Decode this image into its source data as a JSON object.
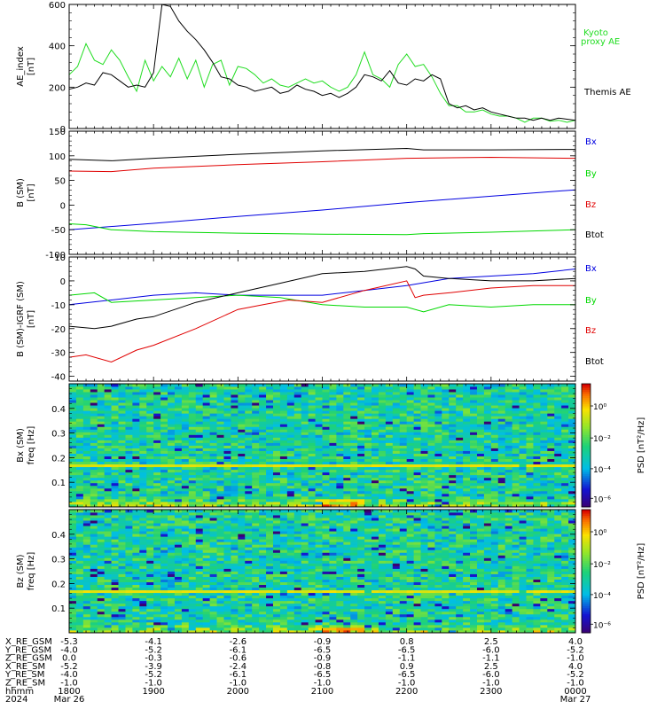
{
  "colors": {
    "axes": "#000000",
    "black": "#000000",
    "red": "#e00000",
    "green": "#00d800",
    "blue": "#0000e0",
    "kyoto": "#22dd22"
  },
  "chart_data": [
    {
      "id": "ae",
      "type": "line",
      "ylabel": "AE_index",
      "yunit": "[nT]",
      "ylim": [
        0,
        600
      ],
      "yticks": [
        0,
        200,
        400,
        600
      ],
      "xlim": [
        1800,
        2400
      ],
      "series": [
        {
          "name": "Kyoto proxy AE",
          "color": "#22dd22",
          "x": [
            1800,
            1810,
            1820,
            1830,
            1840,
            1850,
            1860,
            1870,
            1880,
            1890,
            1900,
            1910,
            1920,
            1930,
            1940,
            1950,
            1960,
            1970,
            1980,
            1990,
            2000,
            2010,
            2020,
            2030,
            2040,
            2050,
            2060,
            2070,
            2080,
            2090,
            2100,
            2110,
            2120,
            2130,
            2140,
            2150,
            2160,
            2170,
            2180,
            2190,
            2200,
            2210,
            2220,
            2230,
            2240,
            2250,
            2260,
            2270,
            2280,
            2290,
            2300,
            2310,
            2320,
            2330,
            2340,
            2350,
            2360,
            2370,
            2380,
            2390,
            2400
          ],
          "y": [
            260,
            300,
            410,
            330,
            310,
            380,
            330,
            250,
            180,
            330,
            230,
            300,
            250,
            340,
            240,
            330,
            200,
            310,
            330,
            210,
            300,
            290,
            260,
            220,
            240,
            210,
            200,
            220,
            240,
            220,
            230,
            200,
            180,
            200,
            260,
            370,
            260,
            240,
            200,
            310,
            360,
            300,
            310,
            250,
            170,
            110,
            110,
            80,
            80,
            90,
            70,
            60,
            60,
            50,
            30,
            50,
            50,
            35,
            40,
            30,
            40
          ]
        },
        {
          "name": "Themis AE",
          "color": "#000000",
          "x": [
            1800,
            1810,
            1820,
            1830,
            1840,
            1850,
            1860,
            1870,
            1880,
            1890,
            1900,
            1910,
            1920,
            1930,
            1940,
            1950,
            1960,
            1970,
            1980,
            1990,
            2000,
            2010,
            2020,
            2030,
            2040,
            2050,
            2060,
            2070,
            2080,
            2090,
            2100,
            2110,
            2120,
            2130,
            2140,
            2150,
            2160,
            2170,
            2180,
            2190,
            2200,
            2210,
            2220,
            2230,
            2240,
            2250,
            2260,
            2270,
            2280,
            2290,
            2300,
            2310,
            2320,
            2330,
            2340,
            2350,
            2360,
            2370,
            2380,
            2390,
            2400
          ],
          "y": [
            190,
            200,
            220,
            210,
            270,
            260,
            230,
            200,
            210,
            200,
            270,
            600,
            590,
            520,
            470,
            430,
            380,
            320,
            250,
            240,
            210,
            200,
            180,
            190,
            200,
            170,
            180,
            210,
            190,
            180,
            160,
            170,
            150,
            170,
            200,
            260,
            250,
            230,
            280,
            220,
            210,
            240,
            230,
            260,
            240,
            120,
            100,
            110,
            90,
            100,
            80,
            70,
            60,
            50,
            50,
            40,
            50,
            40,
            50,
            45,
            40
          ]
        }
      ]
    },
    {
      "id": "b-sm",
      "type": "line",
      "ylabel": "B (SM)",
      "yunit": "[nT]",
      "ylim": [
        -100,
        150
      ],
      "yticks": [
        -100,
        -50,
        0,
        50,
        100,
        150
      ],
      "xlim": [
        1800,
        2400
      ],
      "series": [
        {
          "name": "Bx",
          "color": "#0000e0",
          "x": [
            1800,
            1900,
            2000,
            2100,
            2200,
            2300,
            2400
          ],
          "y": [
            -50,
            -37,
            -23,
            -10,
            5,
            18,
            31
          ]
        },
        {
          "name": "By",
          "color": "#00d800",
          "x": [
            1800,
            1820,
            1850,
            1900,
            2000,
            2100,
            2200,
            2220,
            2300,
            2400
          ],
          "y": [
            -38,
            -40,
            -50,
            -54,
            -57,
            -59,
            -60,
            -58,
            -55,
            -50
          ]
        },
        {
          "name": "Bz",
          "color": "#e00000",
          "x": [
            1800,
            1850,
            1900,
            2000,
            2100,
            2200,
            2300,
            2400
          ],
          "y": [
            69,
            68,
            75,
            82,
            88,
            95,
            97,
            95
          ]
        },
        {
          "name": "Btot",
          "color": "#000000",
          "x": [
            1800,
            1850,
            1900,
            2000,
            2100,
            2200,
            2220,
            2300,
            2400
          ],
          "y": [
            93,
            90,
            95,
            103,
            110,
            115,
            112,
            112,
            113
          ]
        }
      ]
    },
    {
      "id": "db-sm",
      "type": "line",
      "ylabel": "B (SM)-IGRF (SM)",
      "yunit": "[nT]",
      "ylim": [
        -42,
        10
      ],
      "yticks": [
        -40,
        -30,
        -20,
        -10,
        0,
        10
      ],
      "xlim": [
        1800,
        2400
      ],
      "series": [
        {
          "name": "Bx",
          "color": "#0000e0",
          "x": [
            1800,
            1850,
            1900,
            1950,
            2000,
            2050,
            2100,
            2150,
            2200,
            2250,
            2300,
            2350,
            2400
          ],
          "y": [
            -10,
            -8,
            -6,
            -5,
            -6,
            -6,
            -6,
            -4,
            -2,
            1,
            2,
            3,
            5
          ]
        },
        {
          "name": "By",
          "color": "#00d800",
          "x": [
            1800,
            1830,
            1850,
            1900,
            1950,
            2000,
            2050,
            2100,
            2150,
            2200,
            2220,
            2250,
            2300,
            2350,
            2400
          ],
          "y": [
            -6,
            -5,
            -9,
            -8,
            -7,
            -6,
            -7,
            -10,
            -11,
            -11,
            -13,
            -10,
            -11,
            -10,
            -10
          ]
        },
        {
          "name": "Bz",
          "color": "#e00000",
          "x": [
            1800,
            1820,
            1850,
            1880,
            1900,
            1950,
            2000,
            2030,
            2060,
            2100,
            2150,
            2200,
            2210,
            2220,
            2250,
            2300,
            2350,
            2400
          ],
          "y": [
            -32,
            -31,
            -34,
            -29,
            -27,
            -20,
            -12,
            -10,
            -8,
            -9,
            -4,
            0,
            -7,
            -6,
            -5,
            -3,
            -2,
            -2
          ]
        },
        {
          "name": "Btot",
          "color": "#000000",
          "x": [
            1800,
            1830,
            1850,
            1880,
            1900,
            1950,
            2000,
            2050,
            2100,
            2150,
            2200,
            2210,
            2220,
            2250,
            2300,
            2350,
            2400
          ],
          "y": [
            -19,
            -20,
            -19,
            -16,
            -15,
            -9,
            -5,
            -1,
            3,
            4,
            6,
            5,
            2,
            1,
            0,
            0,
            1
          ]
        }
      ]
    },
    {
      "id": "bx-psd",
      "type": "heatmap",
      "ylabel": "Bx (SM)",
      "yunit": "freq [Hz]",
      "ylim": [
        0,
        0.5
      ],
      "yticks": [
        0.1,
        0.2,
        0.3,
        0.4
      ],
      "xlim": [
        1800,
        2400
      ],
      "colorbar_label": "PSD [nT²/Hz]",
      "colorbar_ticks": [
        "10⁰",
        "10⁻²",
        "10⁻⁴",
        "10⁻⁶"
      ]
    },
    {
      "id": "bz-psd",
      "type": "heatmap",
      "ylabel": "Bz (SM)",
      "yunit": "freq [Hz]",
      "ylim": [
        0,
        0.5
      ],
      "yticks": [
        0.1,
        0.2,
        0.3,
        0.4
      ],
      "xlim": [
        1800,
        2400
      ],
      "colorbar_label": "PSD [nT²/Hz]",
      "colorbar_ticks": [
        "10⁰",
        "10⁻²",
        "10⁻⁴",
        "10⁻⁶"
      ]
    }
  ],
  "legends": {
    "ae": [
      "Kyoto",
      "proxy AE",
      "Themis AE"
    ],
    "b": [
      "Bx",
      "By",
      "Bz",
      "Btot"
    ],
    "db": [
      "Bx",
      "By",
      "Bz",
      "Btot"
    ]
  },
  "ephemeris": {
    "rows": [
      {
        "label": "X_RE_GSM",
        "values": [
          "-5.3",
          "-4.1",
          "-2.6",
          "-0.9",
          "0.8",
          "2.5",
          "4.0"
        ]
      },
      {
        "label": "Y_RE_GSM",
        "values": [
          "-4.0",
          "-5.2",
          "-6.1",
          "-6.5",
          "-6.5",
          "-6.0",
          "-5.2"
        ]
      },
      {
        "label": "Z_RE_GSM",
        "values": [
          "0.0",
          "-0.3",
          "-0.6",
          "-0.9",
          "-1.1",
          "-1.1",
          "-1.0"
        ]
      },
      {
        "label": "X_RE_SM",
        "values": [
          "-5.2",
          "-3.9",
          "-2.4",
          "-0.8",
          "0.9",
          "2.5",
          "4.0"
        ]
      },
      {
        "label": "Y_RE_SM",
        "values": [
          "-4.0",
          "-5.2",
          "-6.1",
          "-6.5",
          "-6.5",
          "-6.0",
          "-5.2"
        ]
      },
      {
        "label": "Z_RE_SM",
        "values": [
          "-1.0",
          "-1.0",
          "-1.0",
          "-1.0",
          "-1.0",
          "-1.0",
          "-1.0"
        ]
      },
      {
        "label": "hhmm",
        "values": [
          "1800",
          "1900",
          "2000",
          "2100",
          "2200",
          "2300",
          "0000"
        ]
      },
      {
        "label": "2024",
        "values": [
          "Mar 26",
          "",
          "",
          "",
          "",
          "",
          "Mar 27"
        ]
      }
    ]
  }
}
